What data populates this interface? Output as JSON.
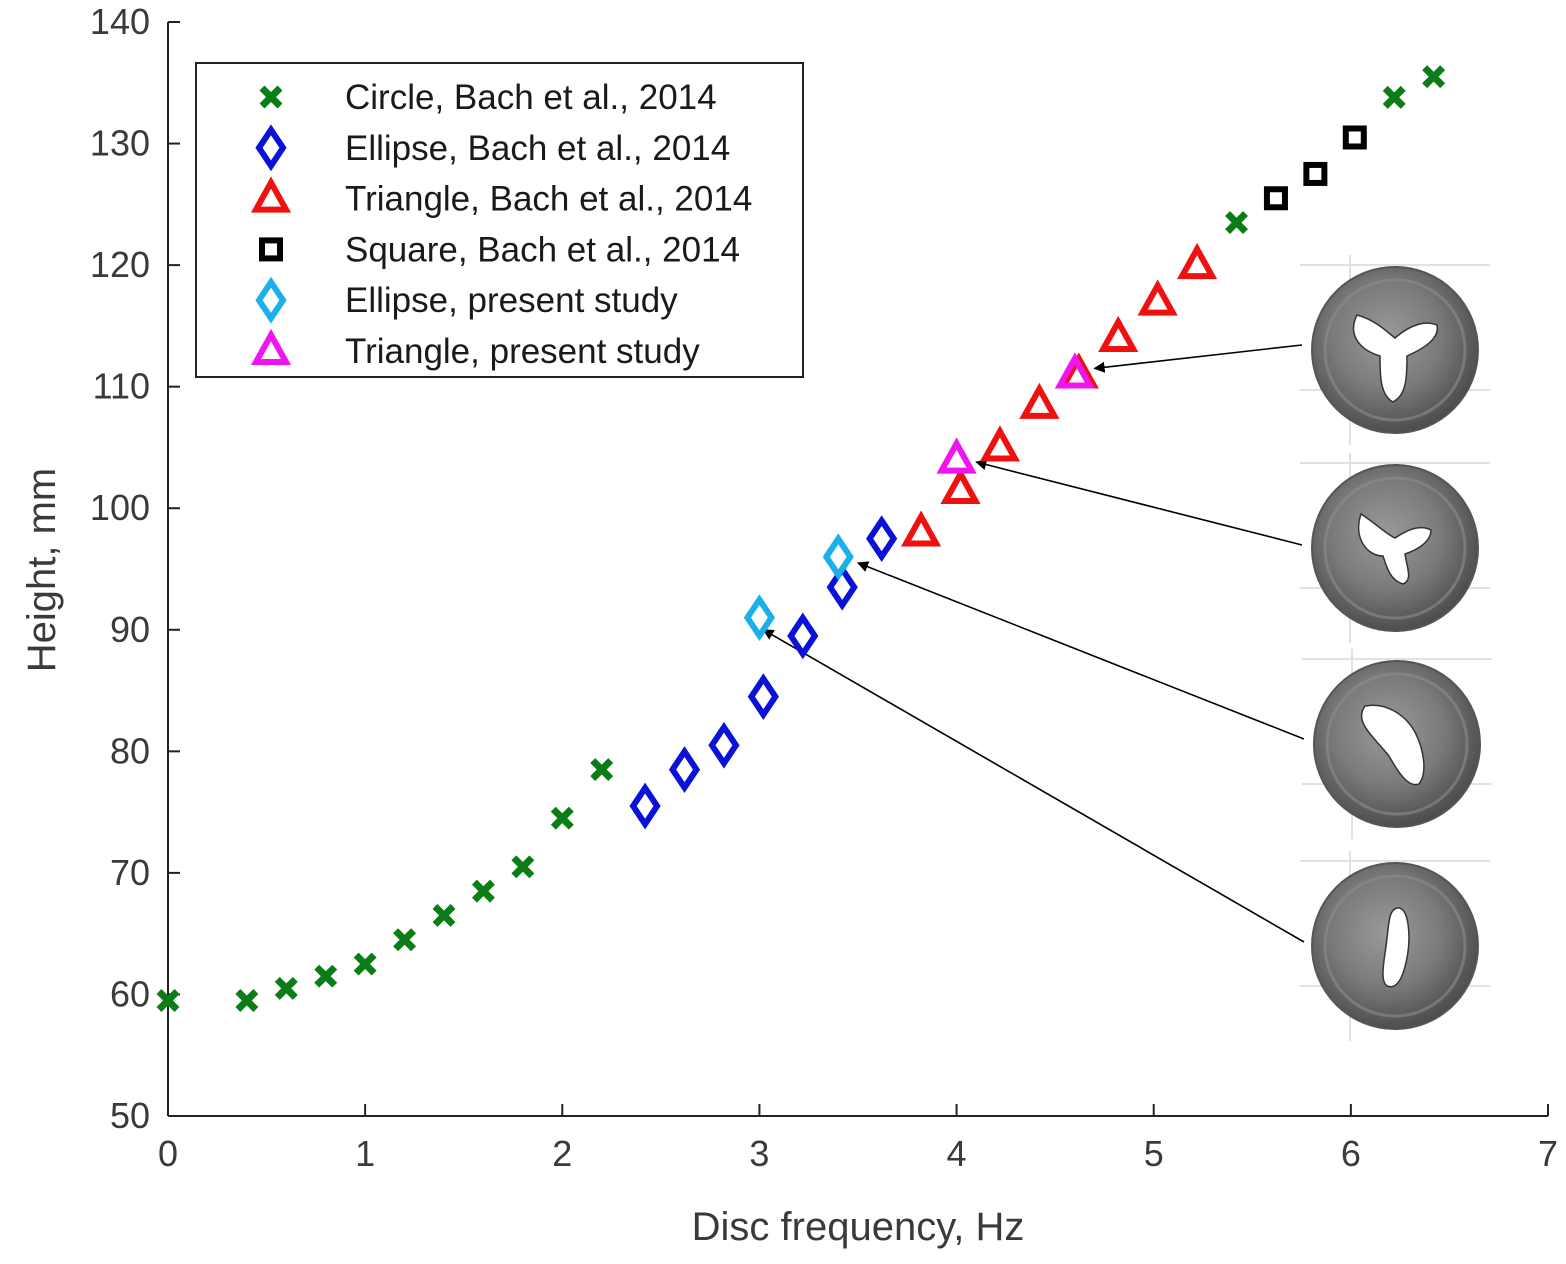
{
  "chart_data": {
    "type": "scatter",
    "title": "",
    "xlabel": "Disc frequency, Hz",
    "ylabel": "Height, mm",
    "xlim": [
      0,
      7
    ],
    "ylim": [
      50,
      140
    ],
    "xticks": [
      0,
      1,
      2,
      3,
      4,
      5,
      6,
      7
    ],
    "yticks": [
      50,
      60,
      70,
      80,
      90,
      100,
      110,
      120,
      130,
      140
    ],
    "grid": false,
    "legend_position": "top-left",
    "series": [
      {
        "name": "Circle, Bach et al., 2014",
        "marker": "x",
        "color": "#0a7d16",
        "points": [
          [
            0.0,
            59.5
          ],
          [
            0.4,
            59.5
          ],
          [
            0.6,
            60.5
          ],
          [
            0.8,
            61.5
          ],
          [
            1.0,
            62.5
          ],
          [
            1.2,
            64.5
          ],
          [
            1.4,
            66.5
          ],
          [
            1.6,
            68.5
          ],
          [
            1.8,
            70.5
          ],
          [
            2.0,
            74.5
          ],
          [
            2.2,
            78.5
          ],
          [
            5.42,
            123.5
          ],
          [
            6.22,
            133.8
          ],
          [
            6.42,
            135.5
          ]
        ]
      },
      {
        "name": "Ellipse, Bach et al., 2014",
        "marker": "diamond",
        "color": "#0a12d8",
        "points": [
          [
            2.42,
            75.5
          ],
          [
            2.62,
            78.5
          ],
          [
            2.82,
            80.5
          ],
          [
            3.02,
            84.5
          ],
          [
            3.22,
            89.5
          ],
          [
            3.42,
            93.5
          ],
          [
            3.62,
            97.5
          ]
        ]
      },
      {
        "name": "Triangle, Bach et al., 2014",
        "marker": "triangle",
        "color": "#f01010",
        "points": [
          [
            3.82,
            98.0
          ],
          [
            4.02,
            101.5
          ],
          [
            4.22,
            105.0
          ],
          [
            4.42,
            108.5
          ],
          [
            4.62,
            111.0
          ],
          [
            4.82,
            114.0
          ],
          [
            5.02,
            117.0
          ],
          [
            5.22,
            120.0
          ]
        ]
      },
      {
        "name": "Square, Bach et al., 2014",
        "marker": "square",
        "color": "#000000",
        "points": [
          [
            5.62,
            125.5
          ],
          [
            5.82,
            127.5
          ],
          [
            6.02,
            130.5
          ]
        ]
      },
      {
        "name": "Ellipse, present study",
        "marker": "diamond",
        "color": "#19b0ec",
        "points": [
          [
            3.0,
            91.0
          ],
          [
            3.4,
            96.0
          ]
        ]
      },
      {
        "name": "Triangle, present study",
        "marker": "triangle",
        "color": "#f015f0",
        "points": [
          [
            4.0,
            104.0
          ],
          [
            4.6,
            111.0
          ]
        ]
      }
    ],
    "annotations": [
      {
        "type": "inset-image",
        "label": "three-lobed vortex core",
        "points_to": [
          4.7,
          111.5
        ]
      },
      {
        "type": "inset-image",
        "label": "three-lobed vortex core",
        "points_to": [
          4.1,
          103.8
        ]
      },
      {
        "type": "inset-image",
        "label": "elliptical vortex core",
        "points_to": [
          3.5,
          95.5
        ]
      },
      {
        "type": "inset-image",
        "label": "elliptical vortex core",
        "points_to": [
          3.02,
          90.0
        ]
      }
    ]
  }
}
